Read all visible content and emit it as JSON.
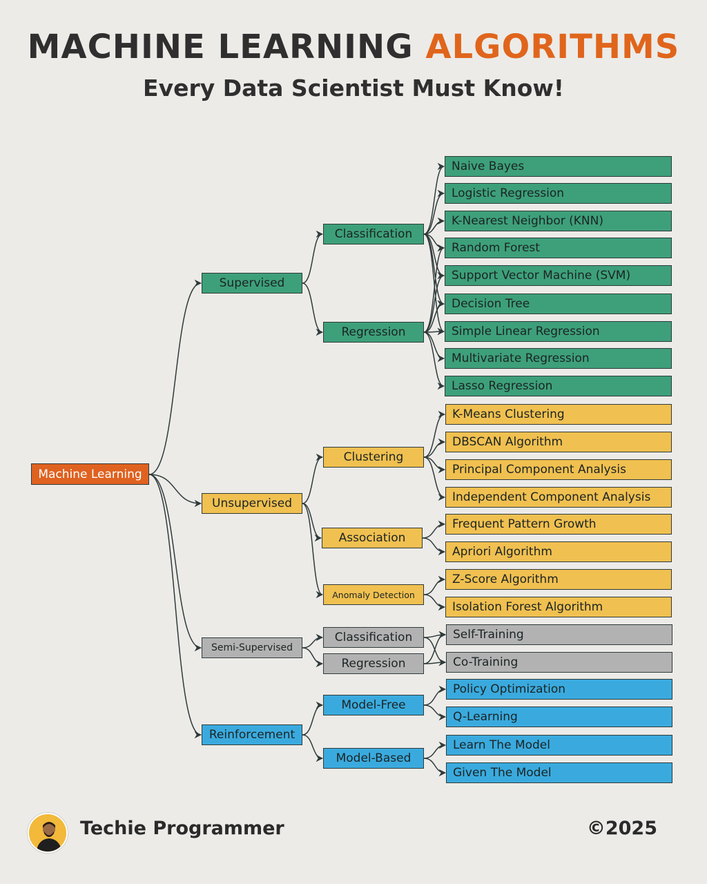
{
  "header": {
    "title_main": "MACHINE LEARNING",
    "title_accent": "ALGORITHMS",
    "subtitle": "Every Data Scientist Must Know!"
  },
  "colors": {
    "supervised": "#3da07a",
    "unsupervised": "#f0c050",
    "semi_supervised": "#b2b2b2",
    "reinforcement": "#3aaade",
    "root": "#df6220",
    "title_accent": "#e0651c",
    "text": "#2f2f2f"
  },
  "tree": {
    "root": "Machine Learning",
    "categories": [
      {
        "label": "Supervised",
        "subcategories": [
          {
            "label": "Classification"
          },
          {
            "label": "Regression"
          }
        ],
        "algorithms": [
          "Naive Bayes",
          "Logistic Regression",
          "K-Nearest Neighbor (KNN)",
          "Random Forest",
          "Support Vector Machine (SVM)",
          "Decision Tree",
          "Simple Linear Regression",
          "Multivariate Regression",
          "Lasso Regression"
        ]
      },
      {
        "label": "Unsupervised",
        "subcategories": [
          {
            "label": "Clustering",
            "algorithms": [
              "K-Means Clustering",
              "DBSCAN Algorithm",
              "Principal Component Analysis",
              "Independent Component Analysis"
            ]
          },
          {
            "label": "Association",
            "algorithms": [
              "Frequent Pattern Growth",
              "Apriori Algorithm"
            ]
          },
          {
            "label": "Anomaly Detection",
            "algorithms": [
              "Z-Score Algorithm",
              "Isolation Forest Algorithm"
            ]
          }
        ]
      },
      {
        "label": "Semi-Supervised",
        "subcategories": [
          {
            "label": "Classification"
          },
          {
            "label": "Regression"
          }
        ],
        "algorithms": [
          "Self-Training",
          "Co-Training"
        ]
      },
      {
        "label": "Reinforcement",
        "subcategories": [
          {
            "label": "Model-Free",
            "algorithms": [
              "Policy Optimization",
              "Q-Learning"
            ]
          },
          {
            "label": "Model-Based",
            "algorithms": [
              "Learn The Model",
              "Given The Model"
            ]
          }
        ]
      }
    ]
  },
  "footer": {
    "brand": "Techie Programmer",
    "year": "©2025",
    "avatar_icon": "person-avatar-icon"
  }
}
